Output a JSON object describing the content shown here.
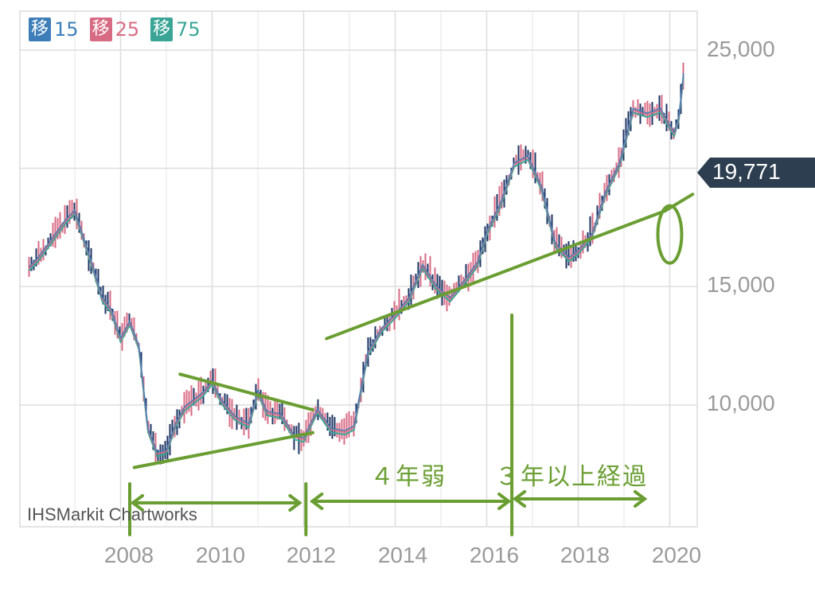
{
  "legend": [
    {
      "badge": "移",
      "label": "15",
      "color": "#3d7eb8"
    },
    {
      "badge": "移",
      "label": "25",
      "color": "#d86b84"
    },
    {
      "badge": "移",
      "label": "75",
      "color": "#3aa596"
    }
  ],
  "credit": "IHSMarkit Chartworks",
  "current_price": "19,771",
  "colors": {
    "grid": "#dddddd",
    "annotation": "#6a9e32",
    "price_tag": "#2c3e50",
    "candle": "#1f3463"
  },
  "annotations": {
    "period_1": "４年弱",
    "period_2": "３年以上経過"
  },
  "chart_data": {
    "type": "line",
    "y_axis_position": "right",
    "yticks": [
      "25,000",
      "15,000",
      "10,000"
    ],
    "xticks": [
      "2008",
      "2010",
      "2012",
      "2014",
      "2016",
      "2018",
      "2020"
    ],
    "ylim": [
      5000,
      26000
    ],
    "xlim": [
      2005.8,
      2020.6
    ],
    "series": [
      {
        "name": "移 15",
        "x": [
          2006.0,
          2006.2,
          2006.5,
          2006.8,
          2007.0,
          2007.2,
          2007.4,
          2007.6,
          2007.8,
          2008.0,
          2008.2,
          2008.4,
          2008.6,
          2008.8,
          2009.0,
          2009.2,
          2009.4,
          2009.6,
          2009.8,
          2010.0,
          2010.2,
          2010.5,
          2010.8,
          2011.0,
          2011.2,
          2011.5,
          2011.8,
          2012.0,
          2012.3,
          2012.6,
          2012.9,
          2013.1,
          2013.4,
          2013.7,
          2014.0,
          2014.3,
          2014.6,
          2014.9,
          2015.2,
          2015.5,
          2015.8,
          2016.0,
          2016.3,
          2016.6,
          2016.9,
          2017.2,
          2017.5,
          2017.8,
          2018.0,
          2018.3,
          2018.6,
          2018.9,
          2019.2,
          2019.5,
          2019.8,
          2020.0,
          2020.1,
          2020.2,
          2020.3
        ],
        "y": [
          15800,
          16200,
          17000,
          17800,
          18200,
          17000,
          15800,
          14500,
          14000,
          12800,
          13500,
          12500,
          9000,
          8000,
          8100,
          9200,
          9900,
          10200,
          10500,
          11000,
          10200,
          9500,
          9200,
          10600,
          9700,
          9600,
          8700,
          8600,
          9800,
          9000,
          8900,
          9100,
          12200,
          13200,
          13800,
          14500,
          15900,
          15000,
          14500,
          15200,
          16000,
          17300,
          18500,
          20200,
          20500,
          19200,
          16800,
          16200,
          16500,
          17200,
          19000,
          20200,
          22500,
          22300,
          22500,
          21800,
          21500,
          22200,
          24000
        ]
      }
    ]
  }
}
